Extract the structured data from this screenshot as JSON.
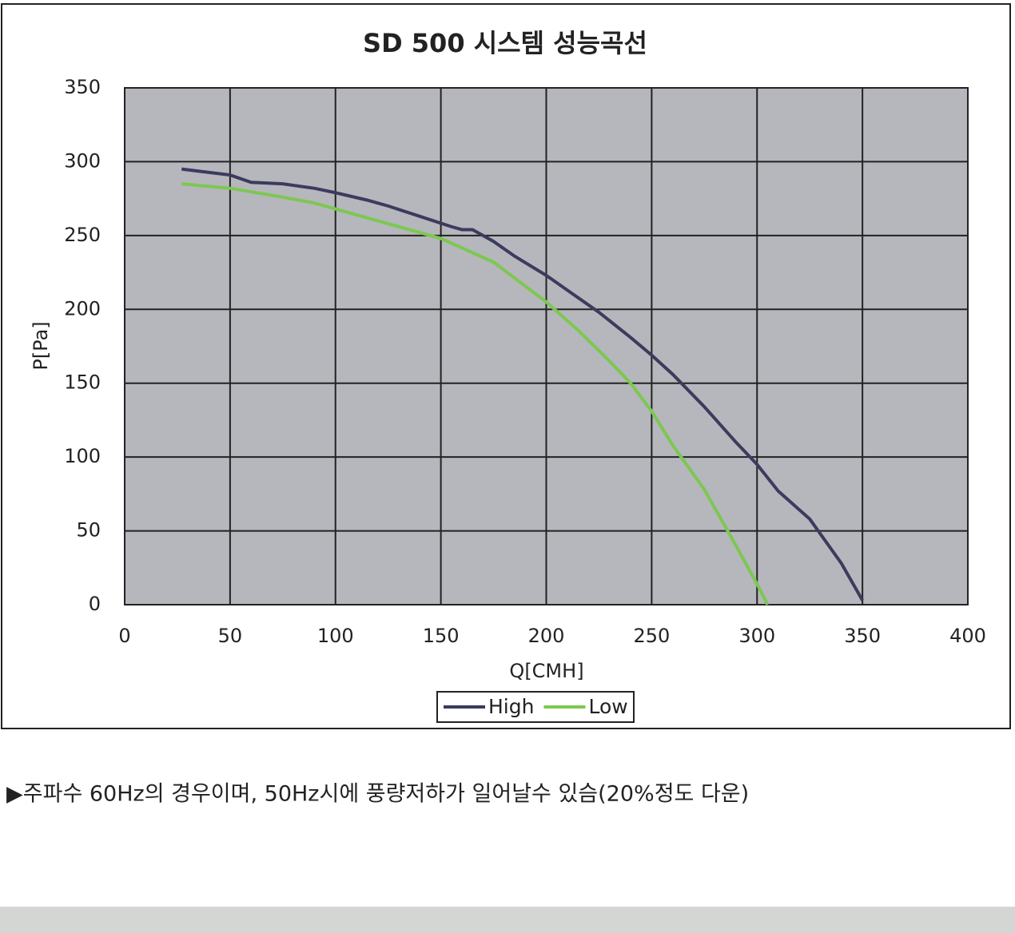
{
  "chart_data": {
    "type": "line",
    "title": "SD 500 시스템 성능곡선",
    "x_label": "Q[CMH]",
    "y_label": "P[Pa]",
    "xlim": [
      0,
      400
    ],
    "xticks": [
      0,
      50,
      100,
      150,
      200,
      250,
      300,
      350,
      400
    ],
    "ylim": [
      0,
      350
    ],
    "yticks": [
      0,
      50,
      100,
      150,
      200,
      250,
      300,
      350
    ],
    "grid": true,
    "legend": "bottom",
    "series": [
      {
        "name": "High",
        "color": "#3b3b5e",
        "x": [
          27,
          50,
          60,
          75,
          90,
          100,
          115,
          125,
          140,
          155,
          160,
          165,
          175,
          185,
          200,
          210,
          225,
          240,
          250,
          260,
          275,
          290,
          300,
          310,
          325,
          340,
          350
        ],
        "values": [
          295,
          291,
          286,
          285,
          282,
          279,
          274,
          270,
          263,
          256,
          254,
          254,
          246,
          236,
          223,
          213,
          198,
          181,
          169,
          156,
          134,
          110,
          95,
          77,
          58,
          28,
          3
        ]
      },
      {
        "name": "Low",
        "color": "#7cc850",
        "x": [
          27,
          50,
          75,
          90,
          100,
          125,
          150,
          175,
          200,
          215,
          230,
          240,
          250,
          260,
          275,
          290,
          300,
          305
        ],
        "values": [
          285,
          282,
          276,
          272,
          268,
          258,
          248,
          232,
          205,
          186,
          165,
          150,
          131,
          108,
          78,
          40,
          14,
          0
        ]
      }
    ]
  },
  "note": "▶주파수 60Hz의 경우이며, 50Hz시에 풍량저하가 일어날수 있슴(20%정도 다운)"
}
